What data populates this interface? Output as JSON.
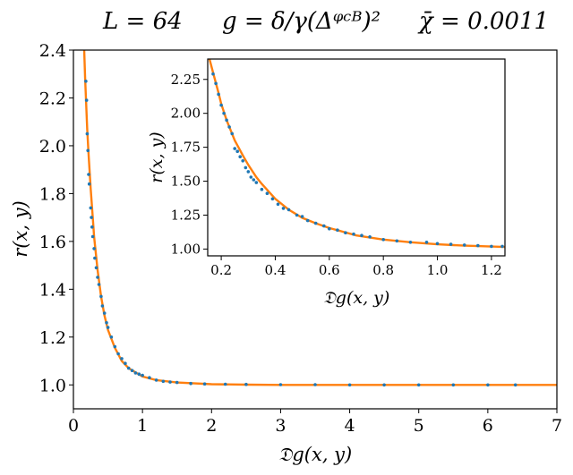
{
  "title": {
    "parts": [
      "L = 64",
      "g = δ/γ(Δᵠᶜᴮ)²",
      "χ̄ = 0.0011"
    ]
  },
  "colors": {
    "fit": "#ff7f0e",
    "points": "#1f77b4",
    "axes": "#000000"
  },
  "chart_data": [
    {
      "type": "scatter",
      "title": "",
      "xlabel": "𝔇g(x, y)",
      "ylabel": "r(x, y)",
      "xlim": [
        0,
        7
      ],
      "ylim": [
        0.9,
        2.4
      ],
      "xticks": [
        "0",
        "1",
        "2",
        "3",
        "4",
        "5",
        "6",
        "7"
      ],
      "yticks": [
        "1.0",
        "1.2",
        "1.4",
        "1.6",
        "1.8",
        "2.0",
        "2.2",
        "2.4"
      ],
      "grid": false,
      "series": [
        {
          "kind": "line",
          "x": [
            0.15,
            0.17,
            0.2,
            0.22,
            0.25,
            0.28,
            0.3,
            0.35,
            0.4,
            0.45,
            0.5,
            0.6,
            0.7,
            0.8,
            1.0,
            1.2,
            1.5,
            2.0,
            2.5,
            3.0,
            4.0,
            5.0,
            6.0,
            7.0
          ],
          "y": [
            2.45,
            2.28,
            2.07,
            1.96,
            1.82,
            1.7,
            1.62,
            1.48,
            1.37,
            1.29,
            1.23,
            1.155,
            1.1,
            1.07,
            1.035,
            1.02,
            1.01,
            1.003,
            1.001,
            1.0,
            1.0,
            1.0,
            1.0,
            1.0
          ]
        },
        {
          "kind": "points",
          "x": [
            0.18,
            0.19,
            0.2,
            0.21,
            0.22,
            0.23,
            0.25,
            0.26,
            0.27,
            0.28,
            0.3,
            0.31,
            0.33,
            0.35,
            0.37,
            0.4,
            0.42,
            0.45,
            0.48,
            0.5,
            0.55,
            0.6,
            0.65,
            0.7,
            0.75,
            0.8,
            0.85,
            0.9,
            0.95,
            1.0,
            1.1,
            1.2,
            1.3,
            1.4,
            1.5,
            1.7,
            1.9,
            2.2,
            2.5,
            3.0,
            3.5,
            4.0,
            4.5,
            5.0,
            5.5,
            6.0,
            6.4
          ],
          "y": [
            2.27,
            2.19,
            2.05,
            1.98,
            1.88,
            1.84,
            1.74,
            1.7,
            1.66,
            1.62,
            1.57,
            1.53,
            1.49,
            1.45,
            1.42,
            1.37,
            1.33,
            1.3,
            1.26,
            1.24,
            1.2,
            1.16,
            1.13,
            1.11,
            1.09,
            1.07,
            1.06,
            1.05,
            1.045,
            1.04,
            1.03,
            1.02,
            1.015,
            1.012,
            1.01,
            1.006,
            1.004,
            1.003,
            1.002,
            1.001,
            1.001,
            1.0,
            1.0,
            1.0,
            1.0,
            1.0,
            1.0
          ]
        }
      ]
    },
    {
      "type": "scatter",
      "title": "",
      "xlabel": "𝔇g(x, y)",
      "ylabel": "r(x, y)",
      "xlim": [
        0.15,
        1.25
      ],
      "ylim": [
        0.95,
        2.4
      ],
      "xticks": [
        "0.2",
        "0.4",
        "0.6",
        "0.8",
        "1.0",
        "1.2"
      ],
      "yticks": [
        "1.00",
        "1.25",
        "1.50",
        "1.75",
        "2.00",
        "2.25"
      ],
      "grid": false,
      "series": [
        {
          "kind": "line",
          "x": [
            0.15,
            0.17,
            0.19,
            0.2,
            0.22,
            0.25,
            0.28,
            0.3,
            0.33,
            0.35,
            0.4,
            0.45,
            0.5,
            0.55,
            0.6,
            0.7,
            0.8,
            0.9,
            1.0,
            1.1,
            1.25
          ],
          "y": [
            2.45,
            2.3,
            2.15,
            2.07,
            1.95,
            1.8,
            1.69,
            1.62,
            1.53,
            1.48,
            1.37,
            1.29,
            1.23,
            1.19,
            1.155,
            1.1,
            1.07,
            1.05,
            1.035,
            1.025,
            1.015
          ]
        },
        {
          "kind": "points",
          "x": [
            0.17,
            0.18,
            0.19,
            0.2,
            0.21,
            0.22,
            0.23,
            0.24,
            0.25,
            0.26,
            0.27,
            0.28,
            0.29,
            0.3,
            0.31,
            0.32,
            0.33,
            0.35,
            0.37,
            0.39,
            0.41,
            0.43,
            0.45,
            0.48,
            0.5,
            0.52,
            0.55,
            0.58,
            0.6,
            0.63,
            0.66,
            0.69,
            0.72,
            0.75,
            0.8,
            0.85,
            0.9,
            0.96,
            1.0,
            1.05,
            1.1,
            1.15,
            1.2,
            1.24
          ],
          "y": [
            2.29,
            2.22,
            2.14,
            2.06,
            2.0,
            1.95,
            1.9,
            1.85,
            1.74,
            1.72,
            1.68,
            1.65,
            1.6,
            1.57,
            1.53,
            1.51,
            1.49,
            1.44,
            1.41,
            1.37,
            1.33,
            1.3,
            1.29,
            1.25,
            1.24,
            1.21,
            1.19,
            1.17,
            1.15,
            1.14,
            1.12,
            1.11,
            1.1,
            1.09,
            1.07,
            1.06,
            1.05,
            1.05,
            1.04,
            1.035,
            1.03,
            1.025,
            1.02,
            1.02
          ]
        }
      ]
    }
  ]
}
